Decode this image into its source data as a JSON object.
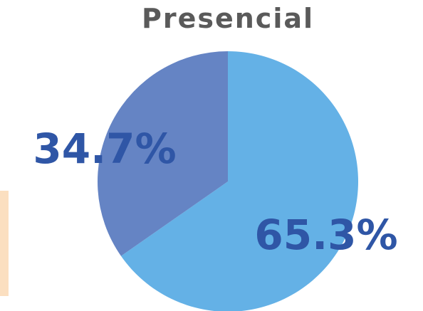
{
  "chart_data": {
    "type": "pie",
    "title": "Presencial",
    "categories": [
      "",
      ""
    ],
    "values": [
      65.3,
      34.7
    ],
    "data_labels": [
      "65.3%",
      "34.7%"
    ],
    "colors": [
      "#64b1e6",
      "#6584c4"
    ],
    "label_color": "#2f56a6",
    "start_angle": "12 o'clock",
    "direction": "clockwise"
  },
  "decorations": {
    "left_strip_color": "#fbdfc0"
  }
}
